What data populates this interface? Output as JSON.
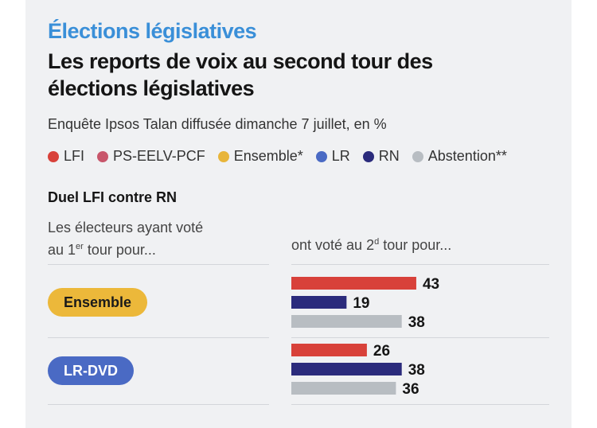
{
  "header": {
    "kicker": "Élections législatives",
    "title": "Les reports de voix au second tour des élections législatives",
    "subtitle": "Enquête Ipsos Talan diffusée dimanche 7 juillet, en %"
  },
  "legend": [
    {
      "label": "LFI",
      "color": "#d8413a"
    },
    {
      "label": "PS-EELV-PCF",
      "color": "#c8566b"
    },
    {
      "label": "Ensemble*",
      "color": "#e8b53a"
    },
    {
      "label": "LR",
      "color": "#4a6ac4"
    },
    {
      "label": "RN",
      "color": "#2b2b7c"
    },
    {
      "label": "Abstention**",
      "color": "#b8bdc2"
    }
  ],
  "section": {
    "title": "Duel LFI contre RN",
    "left_line1": "Les électeurs ayant voté",
    "left_line2_pre": "au 1",
    "left_line2_sup": "er",
    "left_line2_post": " tour pour...",
    "right_pre": "ont voté au 2",
    "right_sup": "d",
    "right_post": " tour pour..."
  },
  "chart_data": {
    "type": "bar",
    "title": "Duel LFI contre RN",
    "unit": "%",
    "series": [
      {
        "name": "LFI",
        "color": "#d8413a"
      },
      {
        "name": "RN",
        "color": "#2b2b7c"
      },
      {
        "name": "Abstention",
        "color": "#b8bdc2"
      }
    ],
    "groups": [
      {
        "label": "Ensemble",
        "pill_bg": "#ecb83a",
        "pill_fg": "#1a1a1a",
        "values": [
          43,
          19,
          38
        ]
      },
      {
        "label": "LR-DVD",
        "pill_bg": "#4a6ac4",
        "pill_fg": "#ffffff",
        "values": [
          26,
          38,
          36
        ]
      }
    ]
  }
}
